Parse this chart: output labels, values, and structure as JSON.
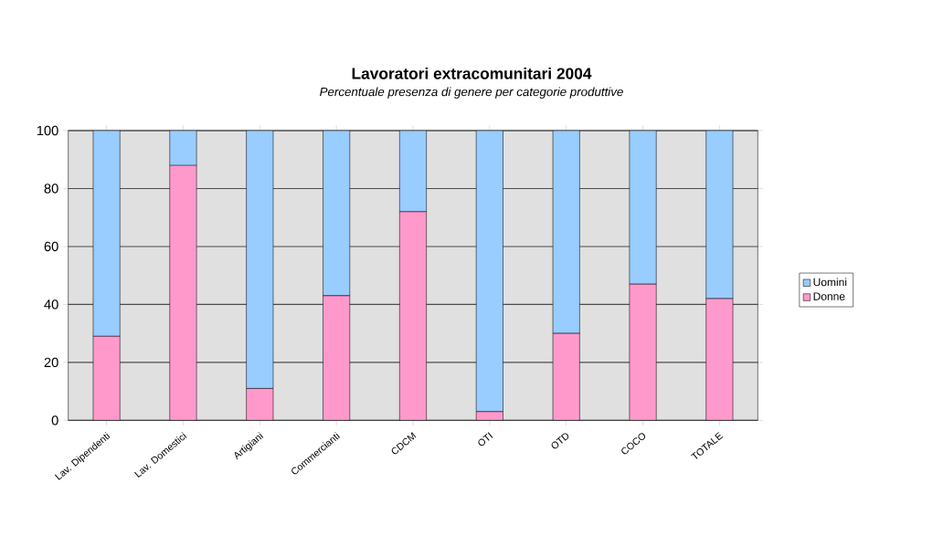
{
  "chart_data": {
    "type": "bar",
    "title": "Lavoratori extracomunitari 2004",
    "subtitle": "Percentuale presenza di genere per categorie produttive",
    "categories": [
      "Lav. Dipendenti",
      "Lav. Domestici",
      "Artigiani",
      "Commercianti",
      "CDCM",
      "OTI",
      "OTD",
      "COCO",
      "TOTALE"
    ],
    "stacked": true,
    "series": [
      {
        "name": "Donne",
        "color": "#ff99cc",
        "values": [
          29,
          88,
          11,
          43,
          72,
          3,
          30,
          47,
          42
        ]
      },
      {
        "name": "Uomini",
        "color": "#99ccff",
        "values": [
          71,
          12,
          89,
          57,
          28,
          97,
          70,
          53,
          58
        ]
      }
    ],
    "ylim": [
      0,
      100
    ],
    "yticks": [
      0,
      20,
      40,
      60,
      80,
      100
    ],
    "grid": "y",
    "legend": "right"
  }
}
